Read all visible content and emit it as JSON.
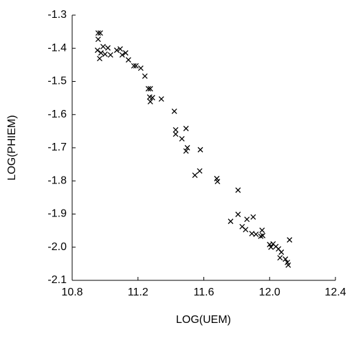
{
  "chart_data": {
    "type": "scatter",
    "x_label": "LOG(UEM)",
    "y_label": "LOG(PHIEM)",
    "x": [
      10.958,
      10.971,
      10.958,
      10.954,
      10.967,
      10.988,
      10.975,
      11.0,
      11.017,
      11.033,
      11.071,
      11.092,
      11.104,
      11.125,
      11.142,
      11.175,
      11.188,
      11.217,
      11.242,
      11.263,
      11.275,
      11.271,
      11.275,
      11.288,
      11.342,
      11.421,
      11.429,
      11.429,
      11.467,
      11.492,
      11.492,
      11.5,
      11.579,
      11.546,
      11.575,
      11.679,
      11.683,
      11.763,
      11.808,
      11.808,
      11.833,
      11.854,
      11.862,
      11.892,
      11.9,
      11.917,
      11.946,
      11.954,
      11.958,
      12.0,
      12.008,
      12.021,
      12.038,
      12.054,
      12.063,
      12.071,
      12.096,
      12.108,
      12.113,
      12.121
    ],
    "values": [
      -1.354,
      -1.354,
      -1.373,
      -1.406,
      -1.431,
      -1.395,
      -1.414,
      -1.418,
      -1.399,
      -1.42,
      -1.406,
      -1.402,
      -1.42,
      -1.414,
      -1.435,
      -1.453,
      -1.453,
      -1.46,
      -1.484,
      -1.522,
      -1.522,
      -1.547,
      -1.561,
      -1.549,
      -1.553,
      -1.59,
      -1.646,
      -1.659,
      -1.673,
      -1.642,
      -1.71,
      -1.7,
      -1.706,
      -1.783,
      -1.77,
      -1.793,
      -1.802,
      -1.922,
      -1.828,
      -1.901,
      -1.938,
      -1.947,
      -1.916,
      -1.959,
      -1.909,
      -1.961,
      -1.967,
      -1.949,
      -1.965,
      -1.992,
      -2.0,
      -1.99,
      -1.998,
      -2.005,
      -2.032,
      -2.015,
      -2.036,
      -2.046,
      -2.054,
      -1.978
    ],
    "color": "#000000",
    "xlim": [
      10.8,
      12.4
    ],
    "xticks": [
      10.8,
      11.2,
      11.6,
      {
        "value": 12,
        "label": "12.0"
      },
      12.4
    ],
    "ylim": [
      -2.1,
      -1.3
    ],
    "yticks": [
      -1.3,
      -1.4,
      -1.5,
      -1.6,
      -1.7,
      -1.8,
      -1.9,
      {
        "value": -2,
        "label": "-2.0"
      },
      -2.1
    ],
    "grid": false
  }
}
